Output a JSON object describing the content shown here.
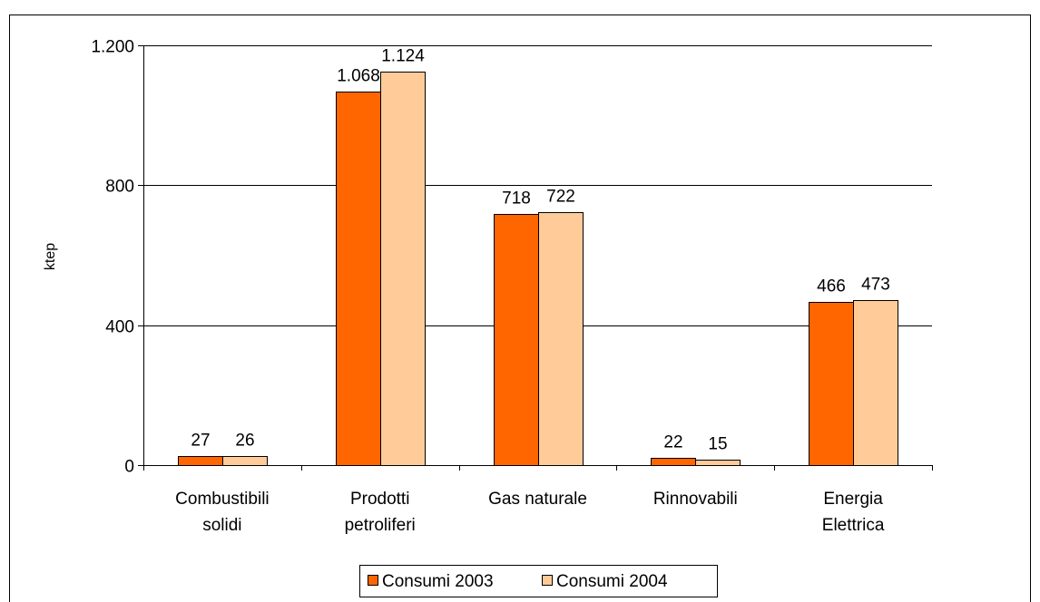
{
  "chart_data": {
    "type": "bar",
    "title": "",
    "ylabel": "ktep",
    "xlabel": "",
    "ylim": [
      0,
      1200
    ],
    "yticks": [
      0,
      400,
      800,
      1200
    ],
    "ytick_labels": [
      "0",
      "400",
      "800",
      "1.200"
    ],
    "grid": "horizontal",
    "legend_position": "bottom",
    "categories": [
      [
        "Combustibili",
        "solidi"
      ],
      [
        "Prodotti",
        "petroliferi"
      ],
      [
        "Gas naturale"
      ],
      [
        "Rinnovabili"
      ],
      [
        "Energia",
        "Elettrica"
      ]
    ],
    "series": [
      {
        "name": "Consumi 2003",
        "color": "#FF6600",
        "values": [
          27,
          1068,
          718,
          22,
          466
        ],
        "labels": [
          "27",
          "1.068",
          "718",
          "22",
          "466"
        ]
      },
      {
        "name": "Consumi 2004",
        "color": "#FFCC99",
        "values": [
          26,
          1124,
          722,
          15,
          473
        ],
        "labels": [
          "26",
          "1.124",
          "722",
          "15",
          "473"
        ]
      }
    ]
  }
}
